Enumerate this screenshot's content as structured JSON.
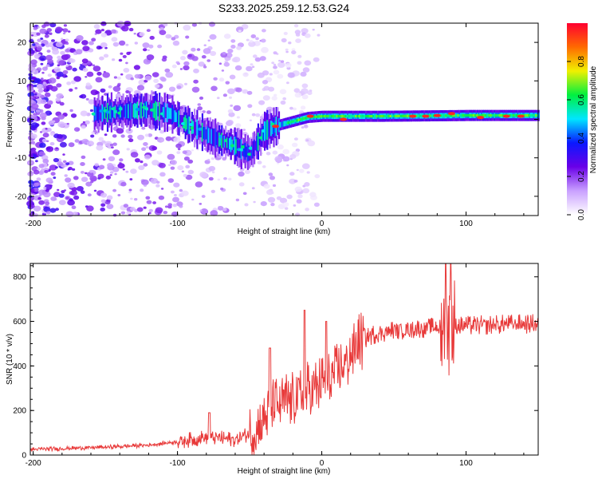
{
  "title": "S233.2025.259.12.53.G24",
  "chart_data": [
    {
      "type": "heatmap",
      "xlabel": "Height of straight line (km)",
      "ylabel": "Frequency (Hz)",
      "xlim": [
        -202,
        150
      ],
      "ylim": [
        -25,
        25
      ],
      "xticks": [
        -200,
        -100,
        0,
        100
      ],
      "yticks": [
        -20,
        -10,
        0,
        10,
        20
      ],
      "colorbar": {
        "label": "Normalized spectral amplitude",
        "range": [
          0,
          1
        ],
        "ticks": [
          0.0,
          0.2,
          0.4,
          0.6,
          0.8
        ],
        "colors": [
          "#ffffff",
          "#c9a0ff",
          "#6a00e8",
          "#0a18ff",
          "#00e6ff",
          "#00f040",
          "#f0f000",
          "#ff6a00",
          "#ff0030"
        ]
      },
      "ridge": [
        {
          "x": -158,
          "f": 1.5
        },
        {
          "x": -140,
          "f": 2.0
        },
        {
          "x": -120,
          "f": 2.5
        },
        {
          "x": -105,
          "f": 1.5
        },
        {
          "x": -95,
          "f": -1.0
        },
        {
          "x": -80,
          "f": -4.0
        },
        {
          "x": -70,
          "f": -5.5
        },
        {
          "x": -60,
          "f": -7.0
        },
        {
          "x": -50,
          "f": -9.0
        },
        {
          "x": -40,
          "f": -3.0
        },
        {
          "x": -30,
          "f": -1.5
        },
        {
          "x": -20,
          "f": -0.5
        },
        {
          "x": -10,
          "f": 0.5
        },
        {
          "x": 0,
          "f": 0.8
        },
        {
          "x": 40,
          "f": 0.8
        },
        {
          "x": 100,
          "f": 1.0
        },
        {
          "x": 150,
          "f": 1.0
        }
      ],
      "hotspots": [
        {
          "x": -8,
          "f": 0.8
        },
        {
          "x": 15,
          "f": 0.0
        },
        {
          "x": 63,
          "f": 0.8
        },
        {
          "x": 72,
          "f": 0.8
        },
        {
          "x": 80,
          "f": 1.0
        },
        {
          "x": 90,
          "f": 1.5
        },
        {
          "x": 110,
          "f": 0.5
        },
        {
          "x": 128,
          "f": 0.8
        },
        {
          "x": 138,
          "f": 0.8
        },
        {
          "x": -32,
          "f": -1.8
        }
      ]
    },
    {
      "type": "line",
      "xlabel": "Height of straight line (km)",
      "ylabel": "SNR (10 * v/v)",
      "xlim": [
        -202,
        150
      ],
      "ylim": [
        0,
        860
      ],
      "xticks": [
        -200,
        -100,
        0,
        100
      ],
      "yticks": [
        0,
        200,
        400,
        600,
        800
      ],
      "series": [
        {
          "name": "SNR",
          "color": "#e83a3a",
          "trend": [
            {
              "x": -202,
              "y": 25
            },
            {
              "x": -150,
              "y": 35
            },
            {
              "x": -120,
              "y": 45
            },
            {
              "x": -100,
              "y": 60
            },
            {
              "x": -80,
              "y": 80
            },
            {
              "x": -60,
              "y": 70
            },
            {
              "x": -45,
              "y": 110
            },
            {
              "x": -35,
              "y": 220
            },
            {
              "x": -25,
              "y": 240
            },
            {
              "x": -15,
              "y": 270
            },
            {
              "x": -5,
              "y": 300
            },
            {
              "x": 5,
              "y": 330
            },
            {
              "x": 15,
              "y": 400
            },
            {
              "x": 25,
              "y": 500
            },
            {
              "x": 35,
              "y": 540
            },
            {
              "x": 50,
              "y": 560
            },
            {
              "x": 70,
              "y": 570
            },
            {
              "x": 85,
              "y": 575
            },
            {
              "x": 100,
              "y": 580
            },
            {
              "x": 120,
              "y": 585
            },
            {
              "x": 150,
              "y": 590
            }
          ],
          "peaks": [
            {
              "x": -78,
              "y": 190
            },
            {
              "x": -36,
              "y": 480
            },
            {
              "x": -12,
              "y": 650
            },
            {
              "x": 3,
              "y": 600
            },
            {
              "x": 86,
              "y": 850
            },
            {
              "x": 89,
              "y": 820
            }
          ]
        }
      ]
    }
  ]
}
